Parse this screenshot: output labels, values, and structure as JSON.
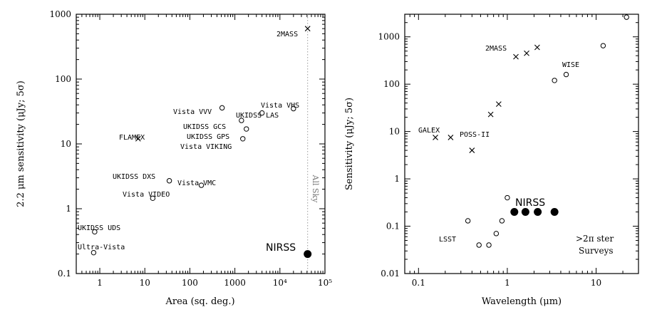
{
  "chart_data": [
    {
      "type": "scatter",
      "xlabel": "Area (sq. deg.)",
      "ylabel": "2.2 μm sensitivity (μJy; 5σ)",
      "xscale": "log",
      "yscale": "log",
      "xlim": [
        0.3,
        100000
      ],
      "ylim": [
        0.1,
        1000
      ],
      "xticks": [
        {
          "value": 1,
          "label": "1"
        },
        {
          "value": 10,
          "label": "10"
        },
        {
          "value": 100,
          "label": "100"
        },
        {
          "value": 1000,
          "label": "1000"
        },
        {
          "value": 10000,
          "label": "10⁴"
        },
        {
          "value": 100000,
          "label": "10⁵"
        }
      ],
      "yticks": [
        {
          "value": 0.1,
          "label": "0.1"
        },
        {
          "value": 1,
          "label": "1"
        },
        {
          "value": 10,
          "label": "10"
        },
        {
          "value": 100,
          "label": "100"
        },
        {
          "value": 1000,
          "label": "1000"
        }
      ],
      "all_sky_line": {
        "x": 41253,
        "label": "All Sky"
      },
      "points": [
        {
          "name": "2MASS",
          "x": 41253,
          "y": 600,
          "marker": "x"
        },
        {
          "name": "FLAMEX",
          "x": 7.1,
          "y": 12,
          "marker": "x"
        },
        {
          "name": "Vista VHS",
          "x": 20000,
          "y": 35,
          "marker": "o"
        },
        {
          "name": "Vista VVV",
          "x": 520,
          "y": 36,
          "marker": "o"
        },
        {
          "name": "UKIDSS LAS",
          "x": 4000,
          "y": 30,
          "marker": "o"
        },
        {
          "name": "UKIDSS GCS",
          "x": 1400,
          "y": 23,
          "marker": "o"
        },
        {
          "name": "UKIDSS GPS",
          "x": 1800,
          "y": 17,
          "marker": "o"
        },
        {
          "name": "Vista VIKING",
          "x": 1500,
          "y": 12,
          "marker": "o"
        },
        {
          "name": "UKIDSS DXS",
          "x": 35,
          "y": 2.7,
          "marker": "o"
        },
        {
          "name": "Vista VMC",
          "x": 180,
          "y": 2.3,
          "marker": "o"
        },
        {
          "name": "Vista VIDEO",
          "x": 15,
          "y": 1.45,
          "marker": "o"
        },
        {
          "name": "UKIDSS UDS",
          "x": 0.77,
          "y": 0.44,
          "marker": "o"
        },
        {
          "name": "Ultra-Vista",
          "x": 0.73,
          "y": 0.21,
          "marker": "o"
        },
        {
          "name": "NIRSS",
          "x": 41253,
          "y": 0.2,
          "marker": "filled"
        }
      ]
    },
    {
      "type": "scatter",
      "xlabel": "Wavelength (μm)",
      "ylabel": "Sensitivity (μJy; 5σ)",
      "xscale": "log",
      "yscale": "log",
      "xlim": [
        0.07,
        30
      ],
      "ylim": [
        0.01,
        3000
      ],
      "xticks": [
        {
          "value": 0.1,
          "label": "0.1"
        },
        {
          "value": 1,
          "label": "1"
        },
        {
          "value": 10,
          "label": "10"
        }
      ],
      "yticks": [
        {
          "value": 0.01,
          "label": "0.01"
        },
        {
          "value": 0.1,
          "label": "0.1"
        },
        {
          "value": 1,
          "label": "1"
        },
        {
          "value": 10,
          "label": "10"
        },
        {
          "value": 100,
          "label": "100"
        },
        {
          "value": 1000,
          "label": "1000"
        }
      ],
      "labels": [
        "2MASS",
        "WISE",
        "GALEX",
        "POSS-II",
        "LSST",
        "NIRSS"
      ],
      "annotation": [
        ">2π ster",
        "Surveys"
      ],
      "series": [
        {
          "name": "2MASS",
          "marker": "x",
          "points": [
            [
              1.25,
              380
            ],
            [
              1.65,
              450
            ],
            [
              2.17,
              600
            ]
          ]
        },
        {
          "name": "POSS-II",
          "marker": "x",
          "points": [
            [
              0.4,
              4
            ],
            [
              0.65,
              23
            ],
            [
              0.8,
              38
            ]
          ]
        },
        {
          "name": "GALEX",
          "marker": "x",
          "points": [
            [
              0.155,
              7.5
            ],
            [
              0.23,
              7.5
            ]
          ]
        },
        {
          "name": "WISE",
          "marker": "o",
          "points": [
            [
              3.4,
              120
            ],
            [
              4.6,
              160
            ],
            [
              12,
              650
            ],
            [
              22,
              2600
            ]
          ]
        },
        {
          "name": "LSST",
          "marker": "o",
          "points": [
            [
              0.36,
              0.13
            ],
            [
              0.48,
              0.04
            ],
            [
              0.62,
              0.04
            ],
            [
              0.75,
              0.07
            ],
            [
              0.87,
              0.13
            ],
            [
              1.0,
              0.4
            ]
          ]
        },
        {
          "name": "NIRSS",
          "marker": "filled",
          "points": [
            [
              1.2,
              0.2
            ],
            [
              1.6,
              0.2
            ],
            [
              2.2,
              0.2
            ],
            [
              3.4,
              0.2
            ]
          ]
        }
      ]
    }
  ]
}
